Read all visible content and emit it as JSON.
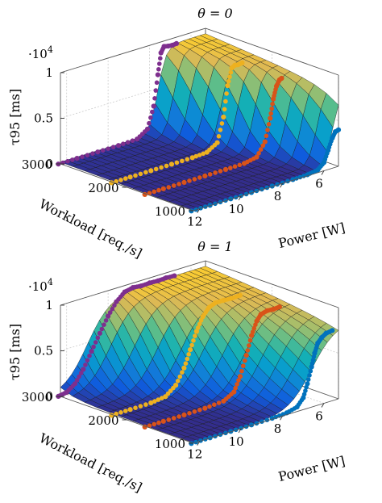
{
  "chart_data": [
    {
      "type": "surface3d",
      "title": "θ = 0",
      "zlabel": "τ95 [ms]",
      "xlabel": "Power [W]",
      "ylabel": "Workload [req./s]",
      "z_multiplier": "·10^4",
      "z_multiplier_text": {
        "base": "·10",
        "exp": "4"
      },
      "zlim": [
        0,
        10000
      ],
      "xlim": [
        5,
        12.5
      ],
      "ylim": [
        1000,
        3000
      ],
      "z_ticks": [
        0,
        0.5,
        1
      ],
      "z_tick_labels": [
        "0",
        "0.5",
        "1"
      ],
      "x_ticks": [
        12,
        10,
        8,
        6
      ],
      "x_tick_labels": [
        "12",
        "10",
        "8",
        "6"
      ],
      "y_ticks": [
        3000,
        2000,
        1000
      ],
      "y_tick_labels": [
        "3000",
        "2000",
        "1000"
      ],
      "grid": true,
      "colormap": "parula",
      "series": [
        {
          "color": "#7e2f8e",
          "workload": 3000,
          "knee_power": 7.6,
          "power": [
            12.4,
            11.5,
            10.5,
            9.5,
            8.6,
            8.1,
            7.8,
            7.6,
            7.45,
            7.3,
            7.1,
            6.9,
            6.7
          ],
          "tau95": [
            50,
            50,
            60,
            70,
            150,
            900,
            3200,
            6500,
            8800,
            9400,
            9300,
            9250,
            9300
          ]
        },
        {
          "color": "#edb120",
          "workload": 2200,
          "knee_power": 6.8,
          "power": [
            12.4,
            11.5,
            10.5,
            9.5,
            8.5,
            7.8,
            7.3,
            7.0,
            6.8,
            6.6,
            6.45,
            6.3,
            6.1
          ],
          "tau95": [
            50,
            50,
            60,
            70,
            90,
            200,
            900,
            3500,
            6800,
            8600,
            8800,
            8750,
            8800
          ]
        },
        {
          "color": "#d95319",
          "workload": 1700,
          "knee_power": 6.2,
          "power": [
            12.4,
            11.5,
            10.5,
            9.5,
            8.5,
            7.6,
            7.0,
            6.6,
            6.35,
            6.2,
            6.05,
            5.9,
            5.8
          ],
          "tau95": [
            50,
            50,
            60,
            70,
            80,
            120,
            400,
            1800,
            4200,
            6200,
            7500,
            8100,
            8200
          ]
        },
        {
          "color": "#0072bd",
          "workload": 1000,
          "knee_power": 5.6,
          "power": [
            12.4,
            11.5,
            10.5,
            9.5,
            8.5,
            7.5,
            6.8,
            6.3,
            6.0,
            5.8,
            5.6,
            5.45,
            5.3
          ],
          "tau95": [
            40,
            40,
            50,
            50,
            60,
            80,
            120,
            300,
            900,
            2100,
            3300,
            3900,
            4000
          ]
        }
      ]
    },
    {
      "type": "surface3d",
      "title": "θ = 1",
      "zlabel": "τ95 [ms]",
      "xlabel": "Power [W]",
      "ylabel": "Workload [req./s]",
      "z_multiplier": "·10^4",
      "z_multiplier_text": {
        "base": "·10",
        "exp": "4"
      },
      "zlim": [
        0,
        10000
      ],
      "xlim": [
        5,
        12.5
      ],
      "ylim": [
        1000,
        3000
      ],
      "z_ticks": [
        0,
        0.5,
        1
      ],
      "z_tick_labels": [
        "0",
        "0.5",
        "1"
      ],
      "x_ticks": [
        12,
        10,
        8,
        6
      ],
      "x_tick_labels": [
        "12",
        "10",
        "8",
        "6"
      ],
      "y_ticks": [
        3000,
        2000,
        1000
      ],
      "y_tick_labels": [
        "3000",
        "2000",
        "1000"
      ],
      "grid": true,
      "colormap": "parula",
      "series": [
        {
          "color": "#7e2f8e",
          "workload": 3000,
          "knee_power": 11.0,
          "power": [
            12.4,
            12.0,
            11.6,
            11.2,
            10.8,
            10.4,
            10.0,
            9.6,
            9.2,
            8.8,
            8.4,
            8.0,
            7.6,
            7.2,
            6.8
          ],
          "tau95": [
            80,
            250,
            900,
            2200,
            3900,
            5600,
            7200,
            8500,
            9300,
            9500,
            9400,
            9450,
            9400,
            9450,
            9400
          ]
        },
        {
          "color": "#edb120",
          "workload": 2200,
          "knee_power": 8.6,
          "power": [
            12.4,
            11.5,
            10.5,
            9.8,
            9.3,
            8.9,
            8.6,
            8.3,
            8.0,
            7.7,
            7.4,
            7.0,
            6.6,
            6.2
          ],
          "tau95": [
            50,
            60,
            90,
            300,
            1200,
            2800,
            4600,
            6400,
            7800,
            8600,
            8900,
            8900,
            8850,
            8900
          ]
        },
        {
          "color": "#d95319",
          "workload": 1700,
          "knee_power": 7.5,
          "power": [
            12.4,
            11.5,
            10.5,
            9.5,
            8.6,
            8.1,
            7.8,
            7.5,
            7.25,
            7.0,
            6.8,
            6.5,
            6.2,
            5.9
          ],
          "tau95": [
            50,
            50,
            60,
            90,
            250,
            900,
            2400,
            4500,
            6500,
            7900,
            8500,
            8700,
            8650,
            8700
          ]
        },
        {
          "color": "#0072bd",
          "workload": 1000,
          "knee_power": 6.6,
          "power": [
            12.4,
            11.5,
            10.5,
            9.5,
            8.5,
            7.8,
            7.3,
            7.0,
            6.8,
            6.6,
            6.45,
            6.3,
            6.1,
            5.9,
            5.6
          ],
          "tau95": [
            40,
            40,
            50,
            60,
            90,
            200,
            500,
            1300,
            2700,
            4400,
            5800,
            6800,
            7300,
            7600,
            7700
          ]
        }
      ]
    }
  ]
}
